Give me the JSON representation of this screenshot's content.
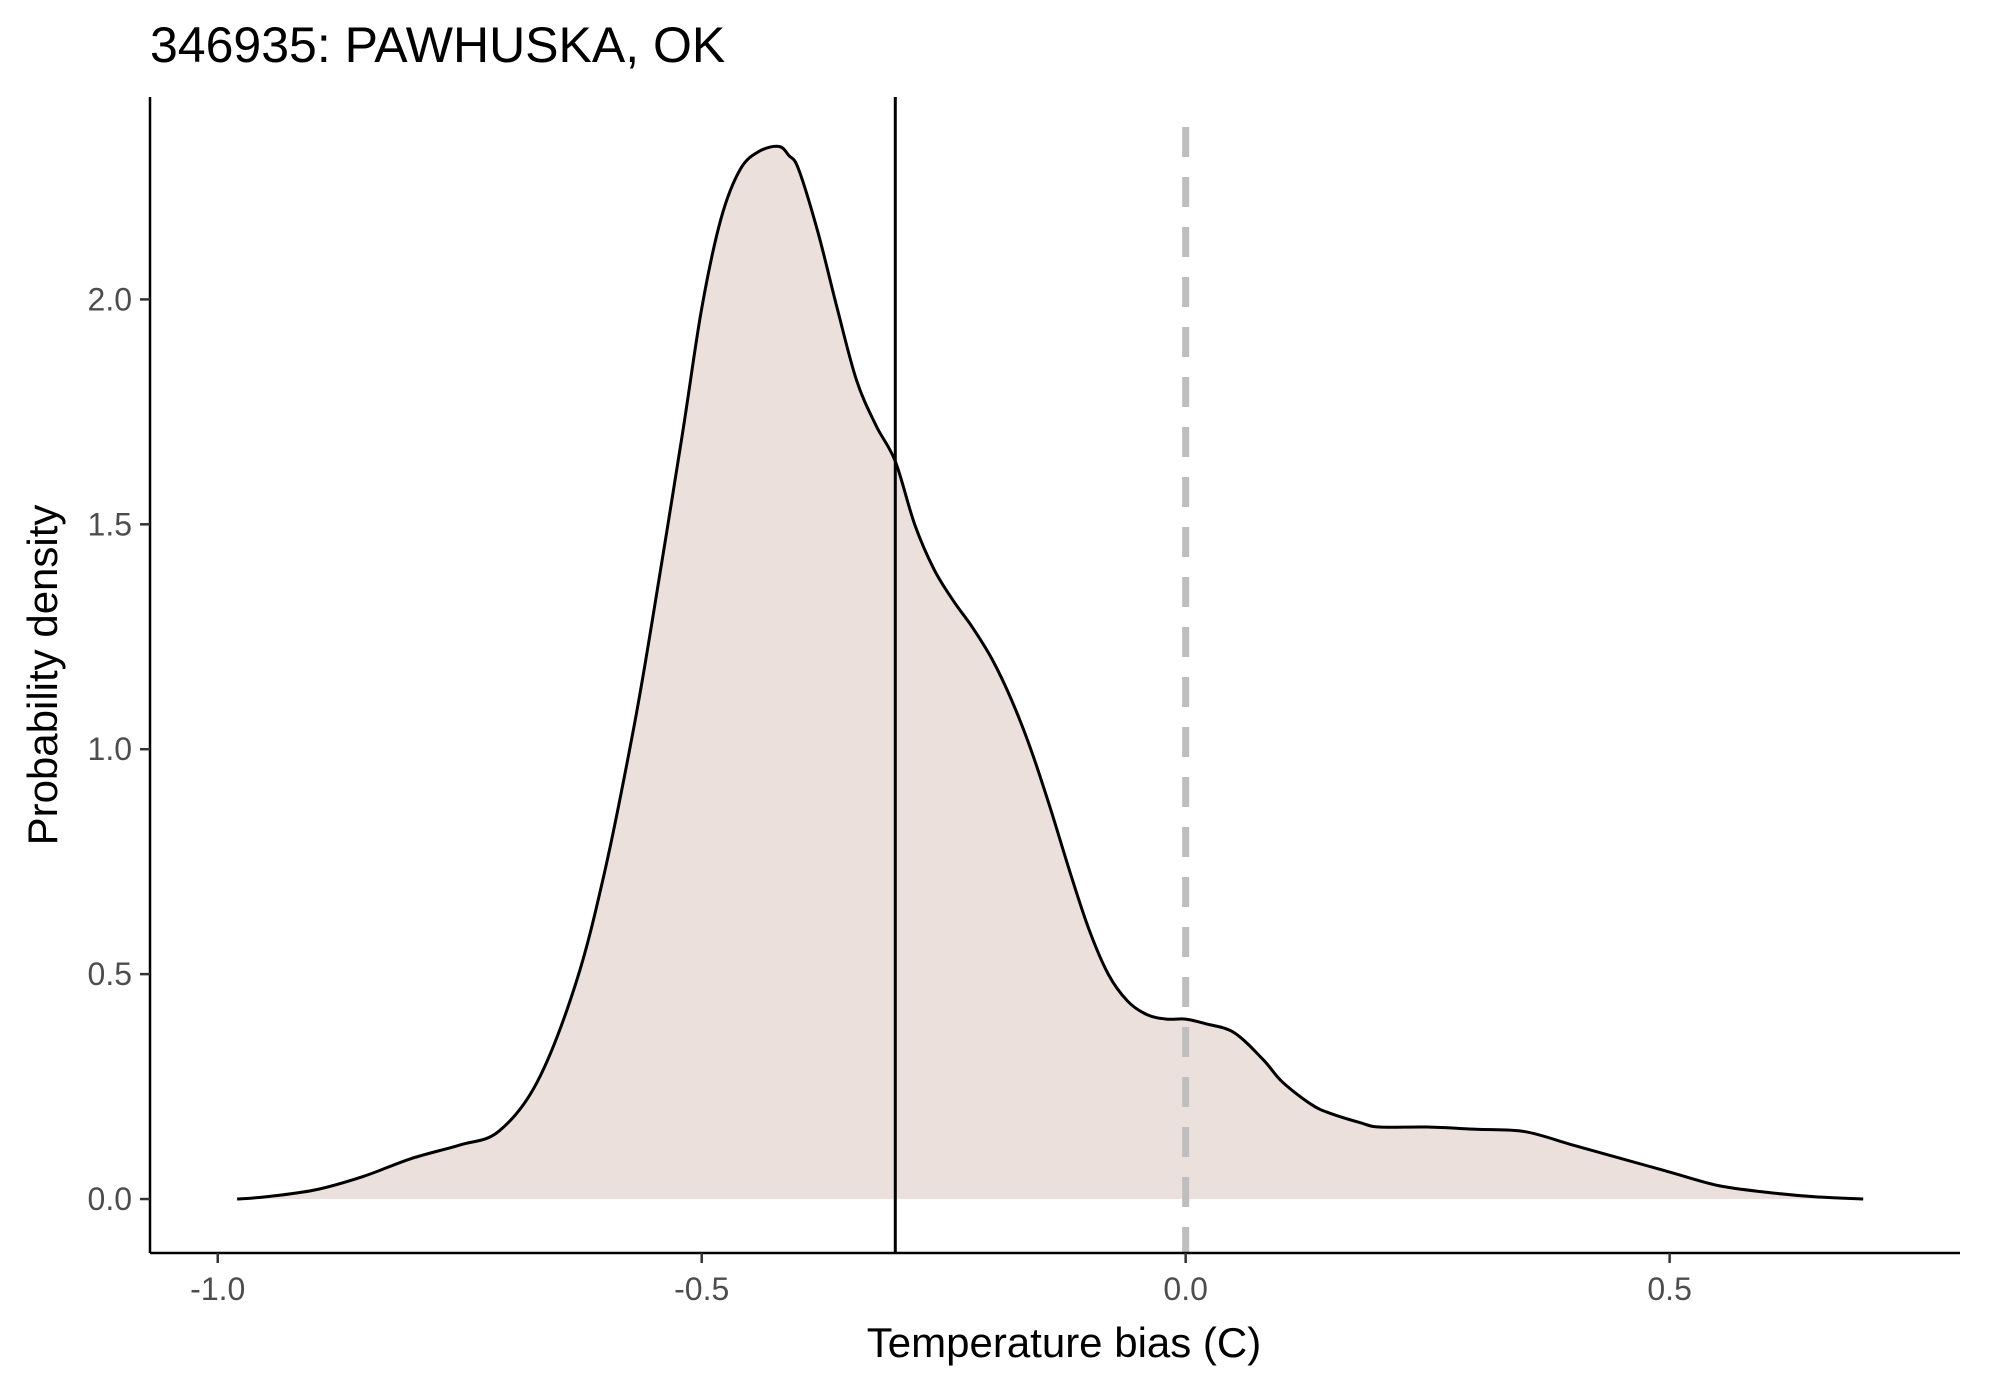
{
  "chart_data": {
    "type": "area",
    "title": "346935: PAWHUSKA, OK",
    "xlabel": "Temperature bias (C)",
    "ylabel": "Probability density",
    "xlim": [
      -1.07,
      0.8
    ],
    "ylim": [
      -0.12,
      2.45
    ],
    "x_ticks": [
      -1.0,
      -0.5,
      0.0,
      0.5
    ],
    "x_tick_labels": [
      "-1.0",
      "-0.5",
      "0.0",
      "0.5"
    ],
    "y_ticks": [
      0.0,
      0.5,
      1.0,
      1.5,
      2.0
    ],
    "y_tick_labels": [
      "0.0",
      "0.5",
      "1.0",
      "1.5",
      "2.0"
    ],
    "grid": false,
    "fill_color": "#ece0dd",
    "line_color": "#000000",
    "reference_lines": [
      {
        "x": -0.3,
        "style": "solid",
        "color": "#000000"
      },
      {
        "x": 0.0,
        "style": "dashed",
        "color": "#bebebe"
      }
    ],
    "series": [
      {
        "x": [
          -0.98,
          -0.95,
          -0.9,
          -0.85,
          -0.8,
          -0.75,
          -0.71,
          -0.67,
          -0.63,
          -0.6,
          -0.57,
          -0.55,
          -0.52,
          -0.5,
          -0.48,
          -0.46,
          -0.44,
          -0.42,
          -0.41,
          -0.4,
          -0.38,
          -0.36,
          -0.34,
          -0.32,
          -0.3,
          -0.28,
          -0.26,
          -0.24,
          -0.22,
          -0.2,
          -0.18,
          -0.16,
          -0.14,
          -0.12,
          -0.1,
          -0.08,
          -0.06,
          -0.04,
          -0.02,
          0.0,
          0.02,
          0.05,
          0.08,
          0.1,
          0.13,
          0.15,
          0.18,
          0.2,
          0.25,
          0.3,
          0.35,
          0.4,
          0.45,
          0.5,
          0.55,
          0.6,
          0.65,
          0.7
        ],
        "y": [
          0.0,
          0.005,
          0.02,
          0.05,
          0.09,
          0.12,
          0.15,
          0.26,
          0.48,
          0.73,
          1.05,
          1.3,
          1.7,
          1.98,
          2.18,
          2.29,
          2.33,
          2.34,
          2.32,
          2.29,
          2.15,
          1.98,
          1.82,
          1.72,
          1.64,
          1.5,
          1.4,
          1.33,
          1.27,
          1.2,
          1.11,
          1.0,
          0.87,
          0.73,
          0.6,
          0.5,
          0.44,
          0.41,
          0.4,
          0.4,
          0.39,
          0.37,
          0.31,
          0.26,
          0.21,
          0.19,
          0.17,
          0.16,
          0.16,
          0.155,
          0.15,
          0.12,
          0.09,
          0.06,
          0.03,
          0.015,
          0.005,
          0.0
        ]
      }
    ]
  }
}
